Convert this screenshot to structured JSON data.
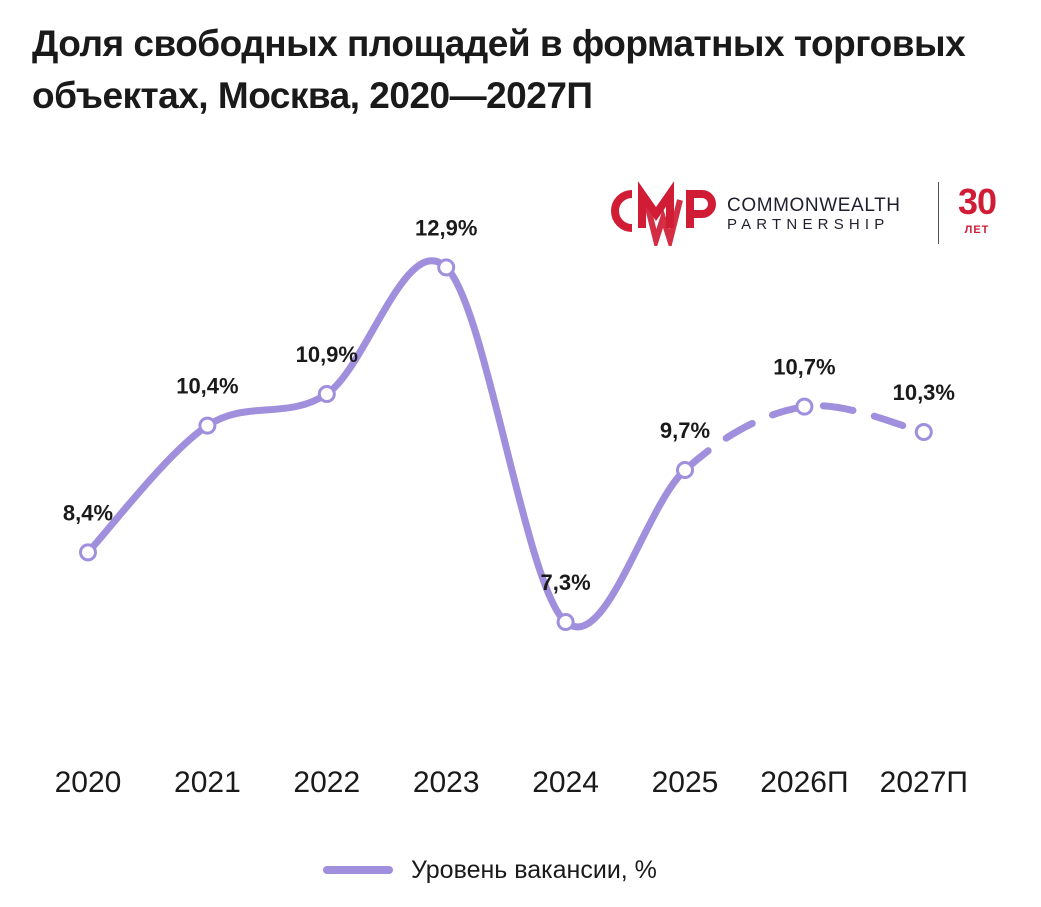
{
  "title": "Доля свободных площадей в форматных торговых объектах, Москва, 2020—2027П",
  "logo": {
    "mark_text": "CMWP",
    "line1": "COMMONWEALTH",
    "line2": "PARTNERSHIP",
    "years_number": "30",
    "years_word": "ЛЕТ",
    "brand_color": "#d01c35"
  },
  "chart_data": {
    "type": "line",
    "title": "Доля свободных площадей в форматных торговых объектах, Москва, 2020—2027П",
    "categories": [
      "2020",
      "2021",
      "2022",
      "2023",
      "2024",
      "2025",
      "2026П",
      "2027П"
    ],
    "series": [
      {
        "name": "Уровень вакансии, %",
        "values": [
          8.4,
          10.4,
          10.9,
          12.9,
          7.3,
          9.7,
          10.7,
          10.3
        ],
        "labels": [
          "8,4%",
          "10,4%",
          "10,9%",
          "12,9%",
          "7,3%",
          "9,7%",
          "10,7%",
          "10,3%"
        ],
        "color": "#a08fdc",
        "forecast_from_index": 5
      }
    ],
    "xlabel": "",
    "ylabel": "",
    "ylim": [
      7,
      13
    ],
    "grid": false,
    "legend_position": "bottom"
  }
}
